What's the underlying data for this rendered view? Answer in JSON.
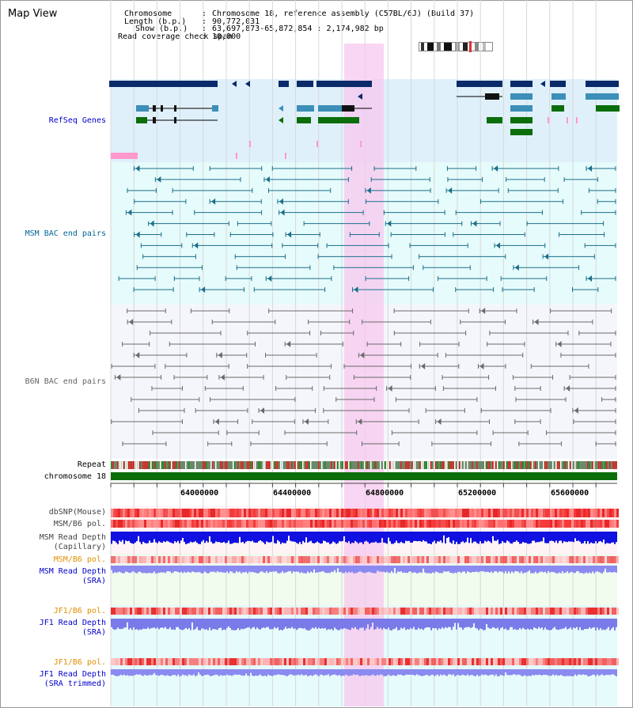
{
  "app": {
    "title": "Map View"
  },
  "header": {
    "chromosome_key": "Chromosome",
    "chromosome_val": "Chromosome 18, reference assembly (C57BL/6J) (Build 37)",
    "length_key": "Length (b.p.)",
    "length_val": "90,772,031",
    "show_key": "Show (b.p.)",
    "show_val": "63,697,873-65,872,854 : 2,174,982 bp",
    "coverage_key": "Read coverage check span",
    "coverage_val": "10,000"
  },
  "tracks": {
    "refseq": "RefSeq Genes",
    "msm_bac": "MSM BAC end pairs",
    "b6n_bac": "B6N BAC end pairs",
    "repeat": "Repeat",
    "chromosome": "chromosome 18",
    "dbsnp": "dbSNP(Mouse)",
    "msm_b6_pol_1": "MSM/B6 pol.",
    "msm_depth_cap_1": "MSM Read Depth",
    "msm_depth_cap_2": "(Capillary)",
    "msm_b6_pol_2": "MSM/B6 pol.",
    "msm_depth_sra_1": "MSM Read Depth",
    "msm_depth_sra_2": "(SRA)",
    "jf1_pol_1": "JF1/B6 pol.",
    "jf1_depth_sra_1": "JF1 Read Depth",
    "jf1_depth_sra_2": "(SRA)",
    "jf1_pol_2": "JF1/B6 pol.",
    "jf1_depth_trim_1": "JF1 Read Depth",
    "jf1_depth_trim_2": "(SRA trimmed)"
  },
  "axis": {
    "ticks": [
      "64000000",
      "64400000",
      "64800000",
      "65200000",
      "65600000"
    ]
  },
  "colors": {
    "refseq_label": "#0000cc",
    "msm_label": "#006699",
    "b6n_label": "#666666",
    "pol_label": "#e09000",
    "depth_label": "#0000cc",
    "highlight": "#f7c8ef",
    "gene_dark": "#0a2a6a",
    "gene_mid": "#3b8fb8",
    "gene_green": "#0b6e0b",
    "chromosome_bar": "#0b6e0b"
  }
}
